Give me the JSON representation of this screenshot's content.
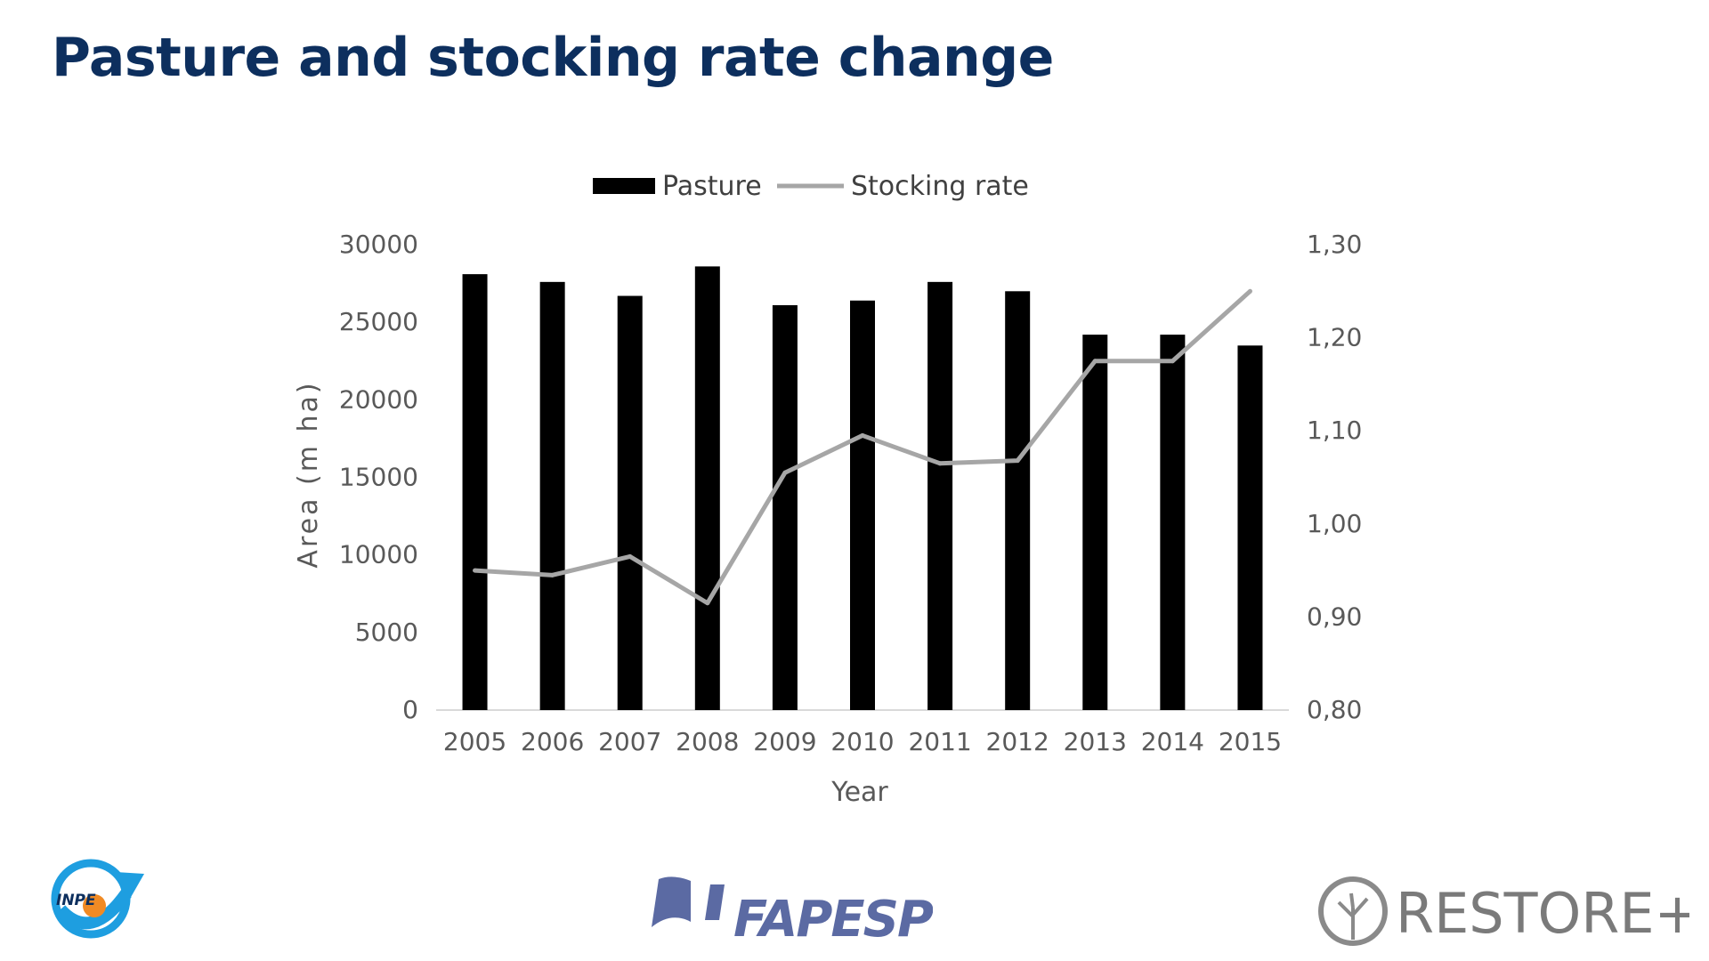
{
  "slide": {
    "title": "Pasture and stocking rate change"
  },
  "chart_data": {
    "type": "bar",
    "categories": [
      "2005",
      "2006",
      "2007",
      "2008",
      "2009",
      "2010",
      "2011",
      "2012",
      "2013",
      "2014",
      "2015"
    ],
    "series": [
      {
        "name": "Pasture",
        "type": "bar",
        "axis": "left",
        "values": [
          28100,
          27600,
          26700,
          28600,
          26100,
          26400,
          27600,
          27000,
          24200,
          24200,
          23500
        ]
      },
      {
        "name": "Stocking rate",
        "type": "line",
        "axis": "right",
        "values": [
          0.95,
          0.945,
          0.965,
          0.915,
          1.055,
          1.095,
          1.065,
          1.068,
          1.175,
          1.175,
          1.25
        ]
      }
    ],
    "xlabel": "Year",
    "ylabel": "Area (m ha)",
    "ylim": [
      0,
      30000
    ],
    "y2lim": [
      0.8,
      1.3
    ],
    "yticks": [
      "0",
      "5000",
      "10000",
      "15000",
      "20000",
      "25000",
      "30000"
    ],
    "y2ticks": [
      "0,80",
      "0,90",
      "1,00",
      "1,10",
      "1,20",
      "1,30"
    ],
    "legend_position": "top",
    "grid": false,
    "colors": {
      "bar": "#000000",
      "line": "#a6a6a6",
      "axis_text": "#595959"
    }
  },
  "logos": {
    "inpe": "INPE",
    "fapesp": "FAPESP",
    "restore": "RESTORE+"
  }
}
